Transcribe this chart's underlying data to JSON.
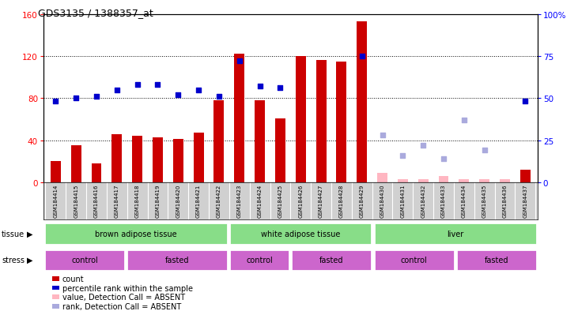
{
  "title": "GDS3135 / 1388357_at",
  "samples": [
    "GSM184414",
    "GSM184415",
    "GSM184416",
    "GSM184417",
    "GSM184418",
    "GSM184419",
    "GSM184420",
    "GSM184421",
    "GSM184422",
    "GSM184423",
    "GSM184424",
    "GSM184425",
    "GSM184426",
    "GSM184427",
    "GSM184428",
    "GSM184429",
    "GSM184430",
    "GSM184431",
    "GSM184432",
    "GSM184433",
    "GSM184434",
    "GSM184435",
    "GSM184436",
    "GSM184437"
  ],
  "count_present": [
    20,
    35,
    18,
    46,
    44,
    43,
    41,
    47,
    78,
    122,
    78,
    61,
    120,
    116,
    115,
    153,
    null,
    null,
    null,
    null,
    null,
    null,
    null,
    12
  ],
  "rank_present": [
    48,
    50,
    51,
    55,
    58,
    58,
    52,
    55,
    51,
    72,
    57,
    56,
    null,
    null,
    null,
    75,
    null,
    null,
    null,
    null,
    null,
    null,
    null,
    48
  ],
  "count_absent": [
    null,
    null,
    null,
    null,
    null,
    null,
    null,
    null,
    null,
    null,
    null,
    null,
    null,
    null,
    null,
    null,
    9,
    3,
    3,
    6,
    3,
    3,
    3,
    null
  ],
  "rank_absent": [
    null,
    null,
    null,
    null,
    null,
    null,
    null,
    null,
    null,
    null,
    null,
    null,
    null,
    null,
    null,
    null,
    28,
    16,
    22,
    14,
    37,
    19,
    null,
    null
  ],
  "ylim_left": [
    0,
    160
  ],
  "ylim_right": [
    0,
    100
  ],
  "yticks_left": [
    0,
    40,
    80,
    120,
    160
  ],
  "yticks_right": [
    0,
    25,
    50,
    75,
    100
  ],
  "bar_color_present": "#cc0000",
  "bar_color_absent": "#ffb6c1",
  "dot_color_present": "#0000cc",
  "dot_color_absent": "#aaaadd",
  "tissue_color": "#88dd88",
  "stress_color": "#cc66cc",
  "tissue_groups": [
    {
      "label": "brown adipose tissue",
      "start": 0,
      "end": 9
    },
    {
      "label": "white adipose tissue",
      "start": 9,
      "end": 16
    },
    {
      "label": "liver",
      "start": 16,
      "end": 24
    }
  ],
  "stress_groups": [
    {
      "label": "control",
      "start": 0,
      "end": 4
    },
    {
      "label": "fasted",
      "start": 4,
      "end": 9
    },
    {
      "label": "control",
      "start": 9,
      "end": 12
    },
    {
      "label": "fasted",
      "start": 12,
      "end": 16
    },
    {
      "label": "control",
      "start": 16,
      "end": 20
    },
    {
      "label": "fasted",
      "start": 20,
      "end": 24
    }
  ],
  "legend": [
    {
      "color": "#cc0000",
      "label": "count"
    },
    {
      "color": "#0000cc",
      "label": "percentile rank within the sample"
    },
    {
      "color": "#ffb6c1",
      "label": "value, Detection Call = ABSENT"
    },
    {
      "color": "#aaaadd",
      "label": "rank, Detection Call = ABSENT"
    }
  ]
}
